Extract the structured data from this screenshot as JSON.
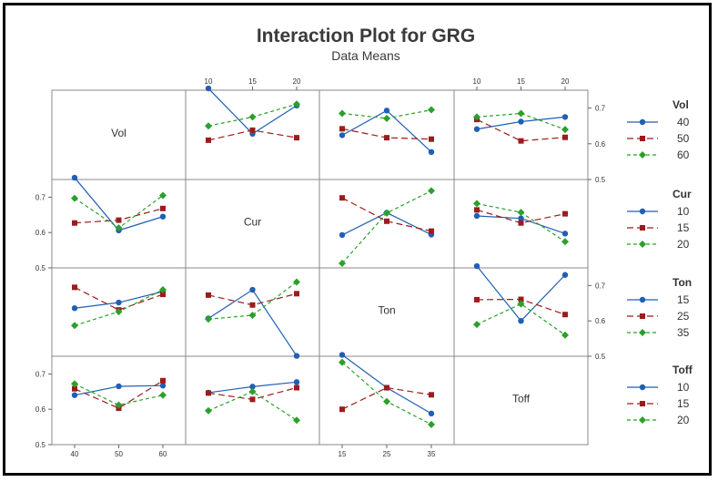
{
  "chart_data": {
    "type": "line",
    "title": "Interaction Plot for GRG",
    "subtitle": "Data Means",
    "ylim": [
      0.5,
      0.75
    ],
    "yticks": [
      0.5,
      0.6,
      0.7
    ],
    "factors": [
      {
        "name": "Vol",
        "levels": [
          40,
          50,
          60
        ]
      },
      {
        "name": "Cur",
        "levels": [
          10,
          15,
          20
        ]
      },
      {
        "name": "Ton",
        "levels": [
          15,
          25,
          35
        ]
      },
      {
        "name": "Toff",
        "levels": [
          10,
          15,
          20
        ]
      }
    ],
    "colors": [
      "#1f5fb4",
      "#9b1c1c",
      "#2ba02b"
    ],
    "panels": [
      {
        "row": 0,
        "col": 1,
        "series": [
          [
            0.755,
            0.628,
            0.707
          ],
          [
            0.61,
            0.638,
            0.617
          ],
          [
            0.65,
            0.675,
            0.711
          ]
        ]
      },
      {
        "row": 0,
        "col": 2,
        "series": [
          [
            0.624,
            0.693,
            0.577
          ],
          [
            0.642,
            0.617,
            0.613
          ],
          [
            0.685,
            0.671,
            0.695
          ]
        ]
      },
      {
        "row": 0,
        "col": 3,
        "series": [
          [
            0.641,
            0.662,
            0.675
          ],
          [
            0.668,
            0.608,
            0.618
          ],
          [
            0.675,
            0.685,
            0.64
          ]
        ]
      },
      {
        "row": 1,
        "col": 0,
        "series": [
          [
            0.755,
            0.606,
            0.645
          ],
          [
            0.627,
            0.635,
            0.668
          ],
          [
            0.697,
            0.613,
            0.705
          ]
        ]
      },
      {
        "row": 1,
        "col": 2,
        "series": [
          [
            0.593,
            0.656,
            0.594
          ],
          [
            0.698,
            0.632,
            0.604
          ],
          [
            0.513,
            0.655,
            0.718
          ]
        ]
      },
      {
        "row": 1,
        "col": 3,
        "series": [
          [
            0.647,
            0.64,
            0.597
          ],
          [
            0.664,
            0.627,
            0.653
          ],
          [
            0.682,
            0.657,
            0.574
          ]
        ]
      },
      {
        "row": 2,
        "col": 0,
        "series": [
          [
            0.636,
            0.652,
            0.683
          ],
          [
            0.695,
            0.631,
            0.675
          ],
          [
            0.587,
            0.626,
            0.688
          ]
        ]
      },
      {
        "row": 2,
        "col": 1,
        "series": [
          [
            0.607,
            0.688,
            0.501
          ],
          [
            0.673,
            0.645,
            0.677
          ],
          [
            0.605,
            0.616,
            0.71
          ]
        ]
      },
      {
        "row": 2,
        "col": 3,
        "series": [
          [
            0.755,
            0.6,
            0.73
          ],
          [
            0.66,
            0.661,
            0.618
          ],
          [
            0.59,
            0.648,
            0.56
          ]
        ]
      },
      {
        "row": 3,
        "col": 0,
        "series": [
          [
            0.64,
            0.665,
            0.667
          ],
          [
            0.658,
            0.603,
            0.681
          ],
          [
            0.672,
            0.612,
            0.64
          ]
        ]
      },
      {
        "row": 3,
        "col": 1,
        "series": [
          [
            0.647,
            0.664,
            0.677
          ],
          [
            0.646,
            0.628,
            0.661
          ],
          [
            0.596,
            0.65,
            0.569
          ]
        ]
      },
      {
        "row": 3,
        "col": 2,
        "series": [
          [
            0.754,
            0.661,
            0.588
          ],
          [
            0.6,
            0.661,
            0.641
          ],
          [
            0.733,
            0.622,
            0.557
          ]
        ]
      }
    ]
  }
}
